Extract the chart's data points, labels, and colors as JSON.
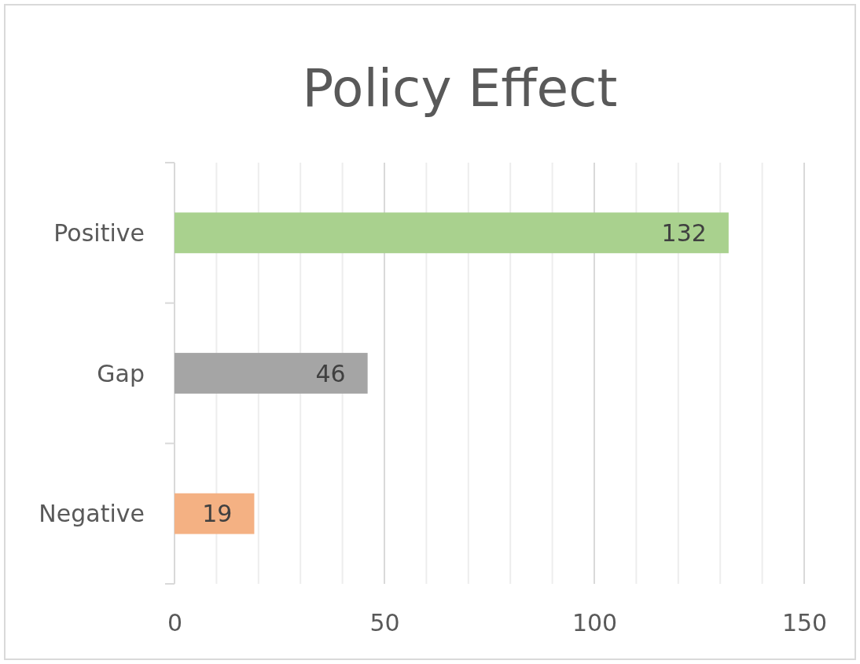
{
  "chart_data": {
    "type": "bar",
    "orientation": "horizontal",
    "title": "Policy Effect",
    "categories": [
      "Positive",
      "Gap",
      "Negative"
    ],
    "values": [
      132,
      46,
      19
    ],
    "colors": [
      "#a9d18e",
      "#a5a5a5",
      "#f4b183"
    ],
    "data_labels": true,
    "xlim": [
      0,
      150
    ],
    "xticks": [
      0,
      {
        "value": 10,
        "label": null
      },
      {
        "value": 20,
        "label": null
      },
      {
        "value": 30,
        "label": null
      },
      {
        "value": 40,
        "label": null
      },
      50,
      {
        "value": 60,
        "label": null
      },
      {
        "value": 70,
        "label": null
      },
      {
        "value": 80,
        "label": null
      },
      {
        "value": 90,
        "label": null
      },
      100,
      {
        "value": 110,
        "label": null
      },
      {
        "value": 120,
        "label": null
      },
      {
        "value": 130,
        "label": null
      },
      {
        "value": 140,
        "label": null
      },
      150
    ],
    "grid": "x"
  }
}
